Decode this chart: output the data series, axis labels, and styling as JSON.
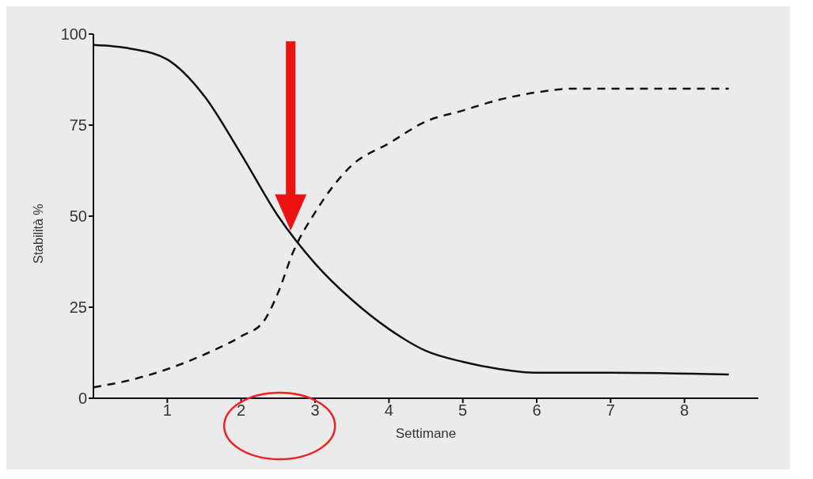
{
  "chart_data": {
    "type": "line",
    "xlabel": "Settimane",
    "ylabel": "Stabilità %",
    "xlim": [
      0,
      9
    ],
    "ylim": [
      0,
      100
    ],
    "xticks": [
      1,
      2,
      3,
      4,
      5,
      6,
      7,
      8
    ],
    "yticks": [
      0,
      25,
      50,
      75,
      100
    ],
    "marker": "none",
    "series": [
      {
        "color": "#111111",
        "line_style": "solid",
        "x": [
          0,
          0.5,
          1,
          1.5,
          2,
          2.5,
          3,
          3.5,
          4,
          4.5,
          5,
          5.5,
          6,
          7,
          8.6
        ],
        "values": [
          97,
          96,
          93,
          83,
          67,
          50,
          37,
          27,
          19,
          13,
          10,
          8,
          7,
          7,
          6.5
        ]
      },
      {
        "color": "#111111",
        "line_style": "dashed",
        "x": [
          0,
          0.5,
          1,
          1.5,
          2,
          2.3,
          2.5,
          2.7,
          3,
          3.5,
          4,
          4.5,
          5,
          5.5,
          6,
          6.5,
          7,
          8.6
        ],
        "values": [
          3,
          5,
          8,
          12,
          17,
          21,
          29,
          40,
          51,
          64,
          70,
          76,
          79,
          82,
          84,
          85,
          85,
          85
        ]
      }
    ]
  }
}
